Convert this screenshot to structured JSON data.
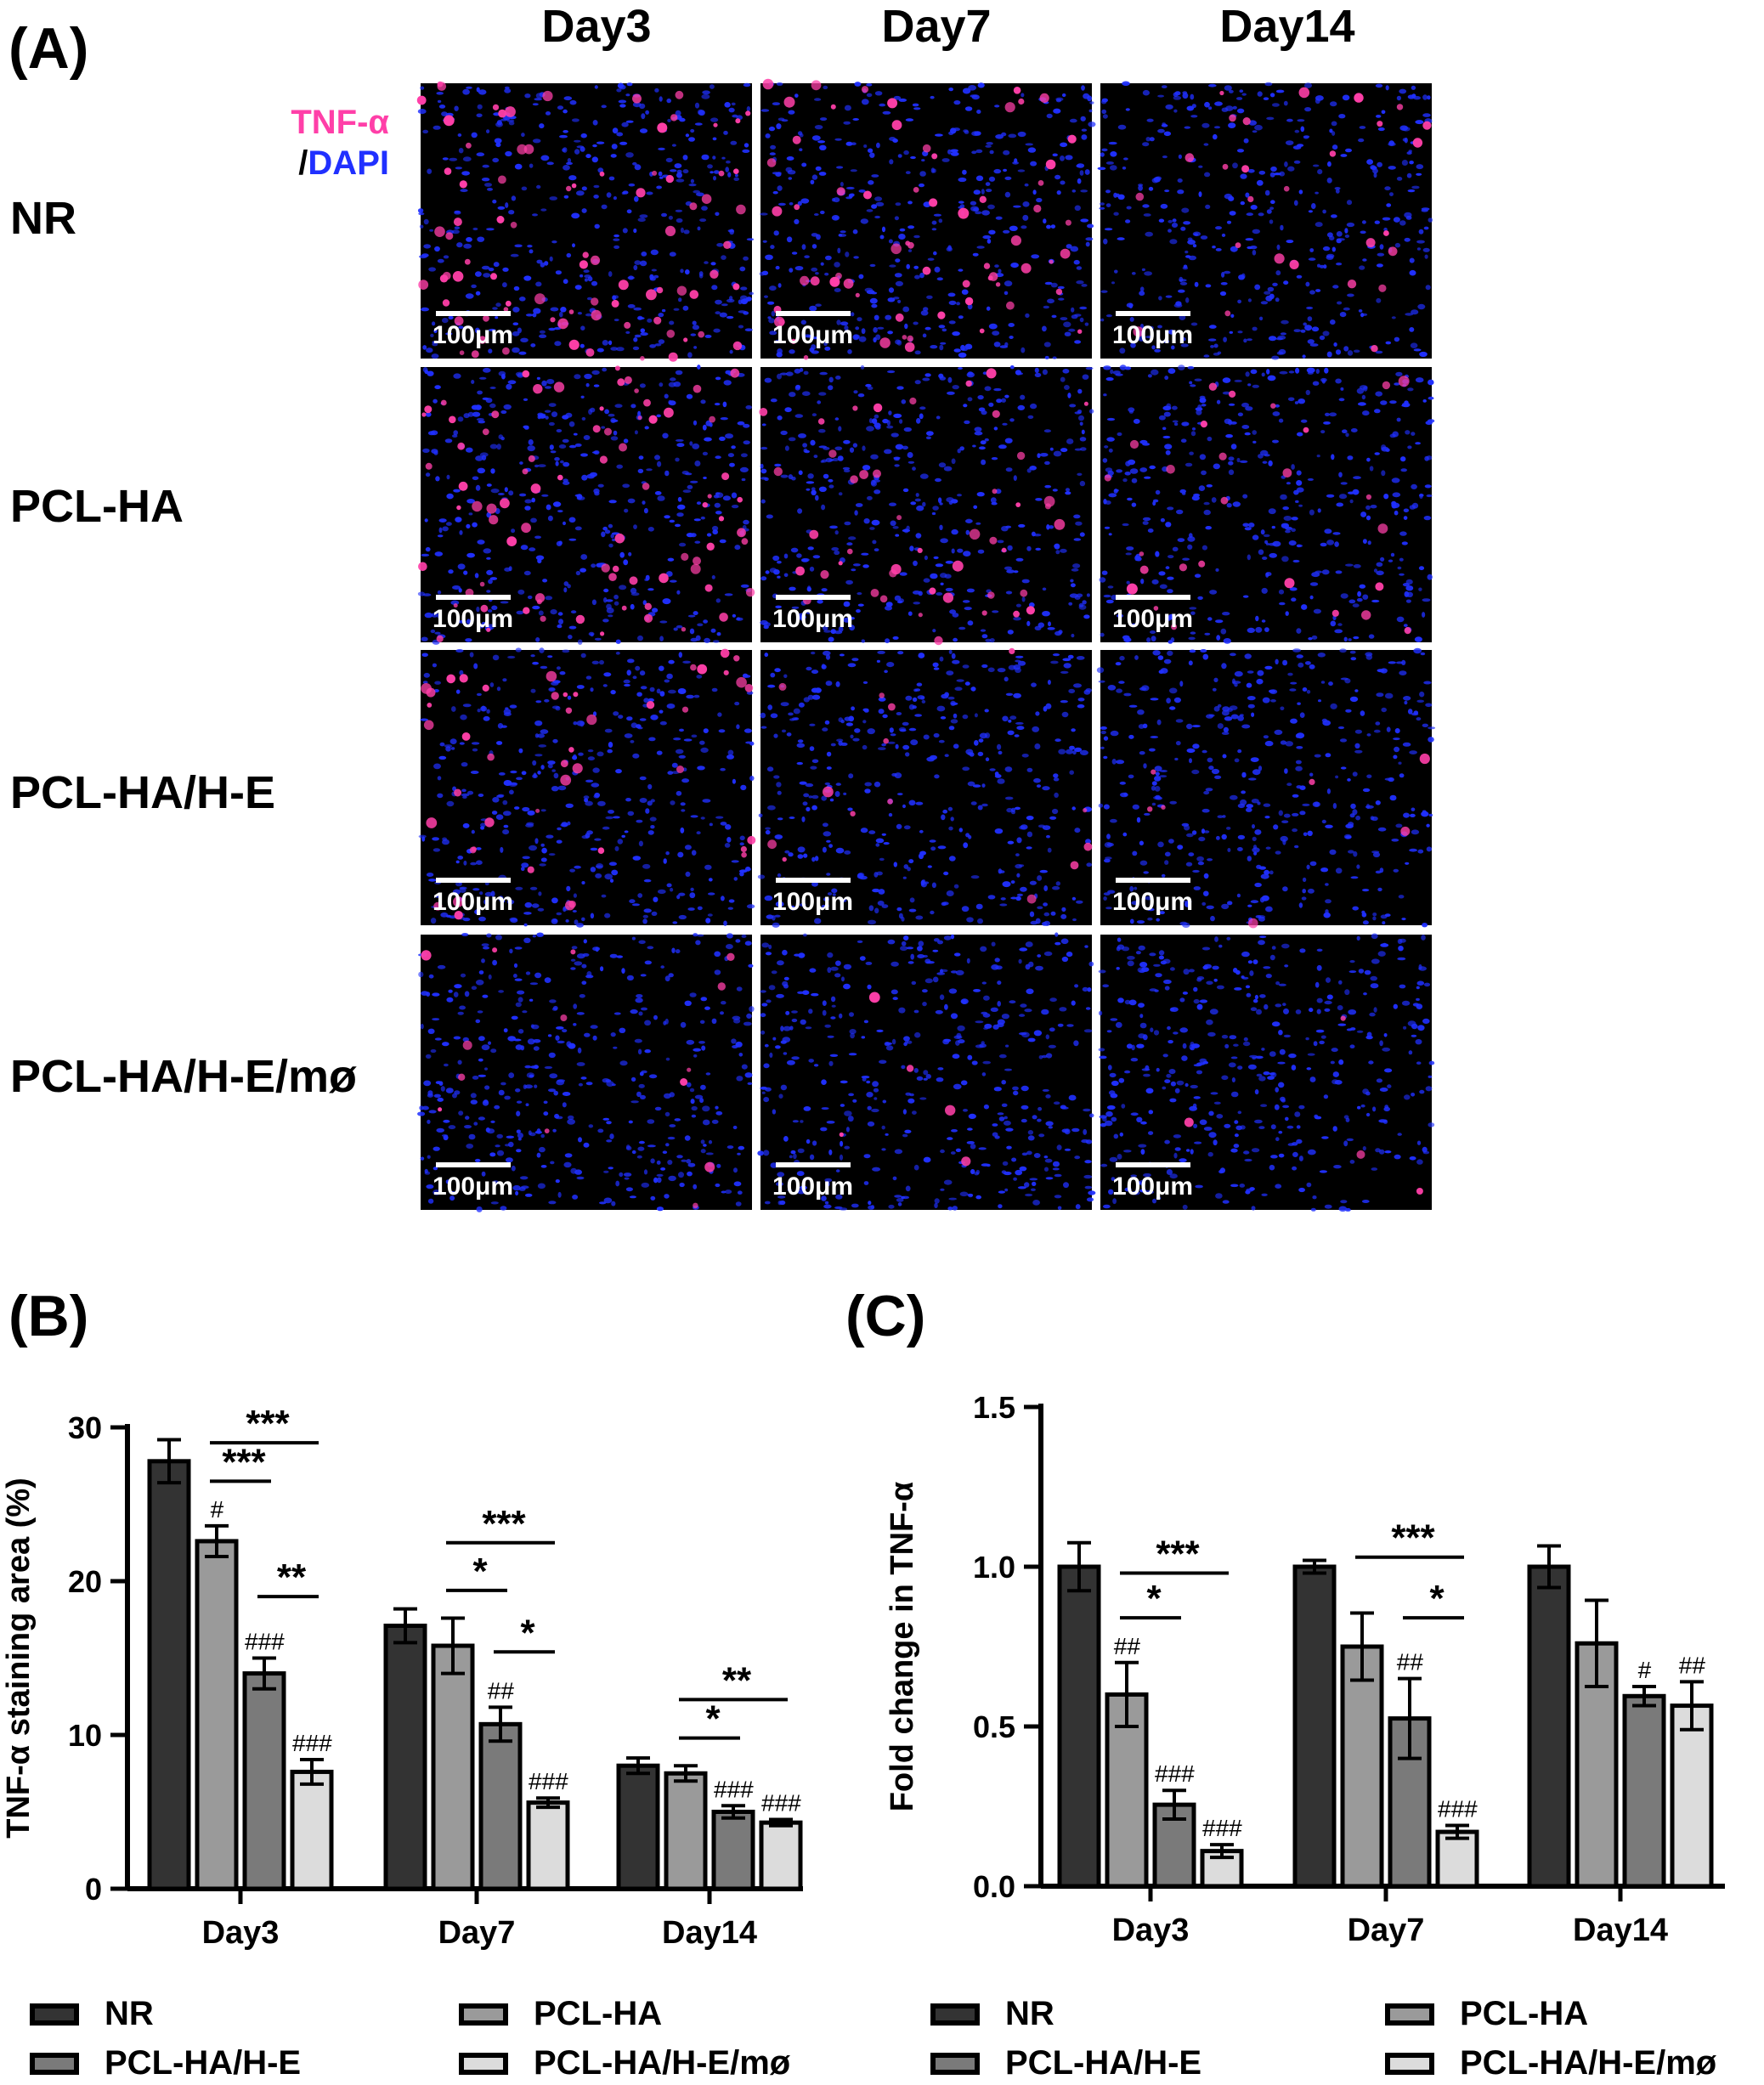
{
  "panel_a": {
    "label": "(A)",
    "columns": [
      "Day3",
      "Day7",
      "Day14"
    ],
    "rows": [
      "NR",
      "PCL-HA",
      "PCL-HA/H-E",
      "PCL-HA/H-E/mø"
    ],
    "stain_legend": {
      "marker": "TNF-α",
      "sep": "/",
      "counter": "DAPI"
    },
    "scale_label": "100μm",
    "colors": {
      "marker": "#ff3fa8",
      "nuclei": "#2030ff",
      "background": "#000000"
    },
    "tnf_signal_level": [
      [
        0.9,
        0.7,
        0.3
      ],
      [
        0.85,
        0.5,
        0.3
      ],
      [
        0.5,
        0.15,
        0.08
      ],
      [
        0.15,
        0.06,
        0.04
      ]
    ]
  },
  "panel_b": {
    "label": "(B)"
  },
  "panel_c": {
    "label": "(C)"
  },
  "chart_data": [
    {
      "type": "bar",
      "panel": "(B)",
      "ylabel": "TNF-α staining area (%)",
      "categories": [
        "Day3",
        "Day7",
        "Day14"
      ],
      "yticks": [
        "0",
        "10",
        "20",
        "30"
      ],
      "ylim": [
        0,
        30
      ],
      "series": [
        {
          "name": "NR",
          "color": "#333333",
          "values": [
            27.8,
            17.1,
            8.0
          ],
          "errors": [
            1.4,
            1.1,
            0.5
          ]
        },
        {
          "name": "PCL-HA",
          "color": "#9a9a9a",
          "values": [
            22.6,
            15.8,
            7.5
          ],
          "errors": [
            1.0,
            1.8,
            0.5
          ]
        },
        {
          "name": "PCL-HA/H-E",
          "color": "#7a7a7a",
          "values": [
            14.0,
            10.7,
            5.0
          ],
          "errors": [
            1.0,
            1.1,
            0.4
          ]
        },
        {
          "name": "PCL-HA/H-E/mø",
          "color": "#dcdcdc",
          "values": [
            7.6,
            5.6,
            4.3
          ],
          "errors": [
            0.8,
            0.3,
            0.2
          ]
        }
      ],
      "hash_marks": [
        {
          "group": 0,
          "series": 1,
          "text": "#"
        },
        {
          "group": 0,
          "series": 2,
          "text": "###"
        },
        {
          "group": 0,
          "series": 3,
          "text": "###"
        },
        {
          "group": 1,
          "series": 2,
          "text": "##"
        },
        {
          "group": 1,
          "series": 3,
          "text": "###"
        },
        {
          "group": 2,
          "series": 2,
          "text": "###"
        },
        {
          "group": 2,
          "series": 3,
          "text": "###"
        }
      ],
      "significance": [
        {
          "group": 0,
          "from": 1,
          "to": 3,
          "text": "***",
          "y": 29.0
        },
        {
          "group": 0,
          "from": 1,
          "to": 2,
          "text": "***",
          "y": 26.5
        },
        {
          "group": 0,
          "from": 2,
          "to": 3,
          "text": "**",
          "y": 19.0
        },
        {
          "group": 1,
          "from": 1,
          "to": 3,
          "text": "***",
          "y": 22.5
        },
        {
          "group": 1,
          "from": 1,
          "to": 2,
          "text": "*",
          "y": 19.4
        },
        {
          "group": 1,
          "from": 2,
          "to": 3,
          "text": "*",
          "y": 15.4
        },
        {
          "group": 2,
          "from": 1,
          "to": 3,
          "text": "**",
          "y": 12.3
        },
        {
          "group": 2,
          "from": 1,
          "to": 2,
          "text": "*",
          "y": 9.8
        }
      ],
      "legend": [
        "NR",
        "PCL-HA",
        "PCL-HA/H-E",
        "PCL-HA/H-E/mø"
      ]
    },
    {
      "type": "bar",
      "panel": "(C)",
      "ylabel": "Fold change in TNF-α",
      "categories": [
        "Day3",
        "Day7",
        "Day14"
      ],
      "yticks": [
        "0.0",
        "0.5",
        "1.0",
        "1.5"
      ],
      "ylim": [
        0,
        1.5
      ],
      "series": [
        {
          "name": "NR",
          "color": "#333333",
          "values": [
            1.0,
            1.0,
            1.0
          ],
          "errors": [
            0.075,
            0.02,
            0.065
          ]
        },
        {
          "name": "PCL-HA",
          "color": "#9a9a9a",
          "values": [
            0.6,
            0.75,
            0.76
          ],
          "errors": [
            0.1,
            0.105,
            0.135
          ]
        },
        {
          "name": "PCL-HA/H-E",
          "color": "#7a7a7a",
          "values": [
            0.255,
            0.525,
            0.595
          ],
          "errors": [
            0.045,
            0.125,
            0.03
          ]
        },
        {
          "name": "PCL-HA/H-E/mø",
          "color": "#dcdcdc",
          "values": [
            0.11,
            0.17,
            0.565
          ],
          "errors": [
            0.02,
            0.02,
            0.075
          ]
        }
      ],
      "hash_marks": [
        {
          "group": 0,
          "series": 1,
          "text": "##"
        },
        {
          "group": 0,
          "series": 2,
          "text": "###"
        },
        {
          "group": 0,
          "series": 3,
          "text": "###"
        },
        {
          "group": 1,
          "series": 2,
          "text": "##"
        },
        {
          "group": 1,
          "series": 3,
          "text": "###"
        },
        {
          "group": 2,
          "series": 2,
          "text": "#"
        },
        {
          "group": 2,
          "series": 3,
          "text": "##"
        }
      ],
      "significance": [
        {
          "group": 0,
          "from": 1,
          "to": 3,
          "text": "***",
          "y": 0.98
        },
        {
          "group": 0,
          "from": 1,
          "to": 2,
          "text": "*",
          "y": 0.84
        },
        {
          "group": 1,
          "from": 1,
          "to": 3,
          "text": "***",
          "y": 1.03
        },
        {
          "group": 1,
          "from": 2,
          "to": 3,
          "text": "*",
          "y": 0.84
        }
      ],
      "legend": [
        "NR",
        "PCL-HA",
        "PCL-HA/H-E",
        "PCL-HA/H-E/mø"
      ]
    }
  ]
}
